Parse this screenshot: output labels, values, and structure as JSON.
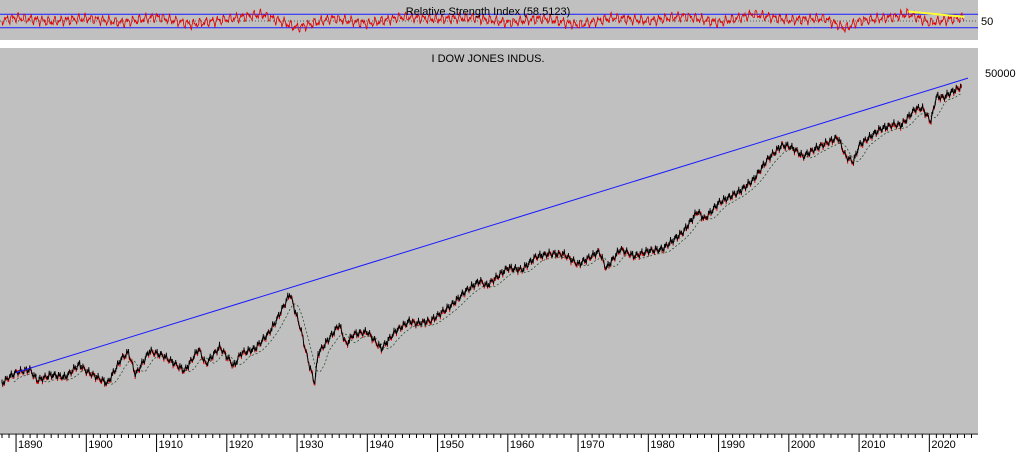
{
  "chart_data": [
    {
      "type": "line",
      "title": "Relative Strength Index (58.5123)",
      "xlabel": "",
      "ylabel": "",
      "yaxis_ticks": [
        "50"
      ],
      "reference_levels": [
        30,
        50,
        70
      ],
      "ylim": [
        0,
        100
      ],
      "grid": false,
      "colors": {
        "series": "#e00000",
        "bands": "#1a1aff",
        "trendline": "#ffff33",
        "background": "#c0c0c0"
      },
      "series": [
        {
          "x": [
            1888,
            1890,
            1895,
            1900,
            1905,
            1910,
            1915,
            1920,
            1925,
            1930,
            1935,
            1940,
            1945,
            1950,
            1955,
            1960,
            1965,
            1970,
            1975,
            1980,
            1985,
            1990,
            1995,
            2000,
            2005,
            2008,
            2010,
            2015,
            2017,
            2020,
            2024
          ],
          "values": [
            52,
            60,
            48,
            58,
            45,
            62,
            40,
            55,
            70,
            30,
            58,
            42,
            62,
            55,
            60,
            45,
            58,
            38,
            60,
            50,
            65,
            45,
            70,
            52,
            58,
            28,
            50,
            62,
            72,
            45,
            58.5
          ]
        }
      ],
      "trendline": {
        "x": [
          2017,
          2025
        ],
        "values": [
          78,
          62
        ]
      }
    },
    {
      "type": "line",
      "title": "I DOW JONES INDUS.",
      "xlabel": "",
      "ylabel": "",
      "scale": "log",
      "ylim": [
        28,
        72000
      ],
      "xlim": [
        1888,
        2026.5
      ],
      "yaxis_ticks": [
        "50000"
      ],
      "x_ticks": [
        "1890",
        "1900",
        "1910",
        "1920",
        "1930",
        "1940",
        "1950",
        "1960",
        "1970",
        "1980",
        "1990",
        "2000",
        "2010",
        "2020"
      ],
      "grid": false,
      "colors": {
        "price": "#000000",
        "price_down": "#e00000",
        "moving_average": "#2f4f2f",
        "trendline": "#1a1aff",
        "background": "#c0c0c0"
      },
      "series": [
        {
          "x": [
            1888,
            1889,
            1890,
            1892,
            1893,
            1895,
            1897,
            1899,
            1900,
            1903,
            1905,
            1906,
            1907,
            1909,
            1911,
            1914,
            1916,
            1917,
            1919,
            1921,
            1922,
            1924,
            1926,
            1927,
            1928,
            1929,
            1929.8,
            1930.5,
            1931.5,
            1932.5,
            1933,
            1935,
            1936,
            1937,
            1938,
            1940,
            1942,
            1944,
            1946,
            1947,
            1949,
            1952,
            1954,
            1956,
            1957,
            1960,
            1962,
            1964,
            1966,
            1968,
            1970,
            1973,
            1974,
            1976,
            1978,
            1980,
            1982,
            1985,
            1987,
            1988,
            1990,
            1993,
            1995,
            1997,
            1999,
            2000,
            2001,
            2002,
            2004,
            2007,
            2008.1,
            2009.2,
            2010,
            2013,
            2015,
            2016,
            2018,
            2019,
            2020.2,
            2021,
            2022,
            2023,
            2024.5
          ],
          "values": [
            45,
            52,
            58,
            62,
            48,
            55,
            52,
            70,
            60,
            45,
            80,
            92,
            55,
            95,
            85,
            60,
            100,
            70,
            105,
            67,
            90,
            100,
            145,
            190,
            260,
            360,
            230,
            160,
            80,
            45,
            90,
            140,
            175,
            110,
            140,
            148,
            100,
            150,
            190,
            180,
            190,
            275,
            380,
            480,
            430,
            650,
            620,
            840,
            900,
            890,
            700,
            950,
            640,
            1000,
            850,
            960,
            1000,
            1500,
            2400,
            2000,
            2900,
            3800,
            5000,
            8000,
            11000,
            10800,
            9800,
            8500,
            10400,
            13200,
            8500,
            7500,
            11000,
            16000,
            17800,
            17500,
            25500,
            26000,
            19000,
            34000,
            33000,
            37000,
            42500
          ]
        }
      ],
      "trendline": {
        "x": [
          1890,
          2025.5
        ],
        "values": [
          58,
          52000
        ]
      }
    }
  ]
}
